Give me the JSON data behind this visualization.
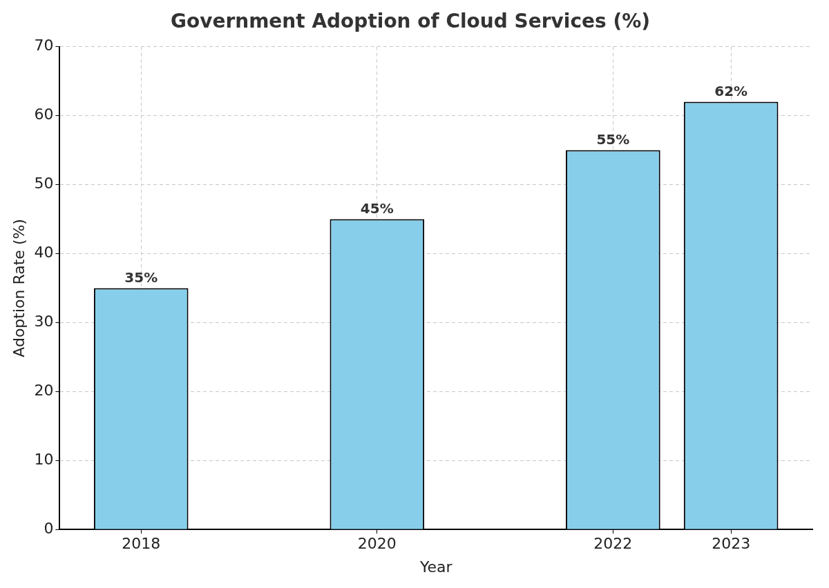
{
  "chart_data": {
    "type": "bar",
    "title": "Government Adoption of Cloud Services (%)",
    "xlabel": "Year",
    "ylabel": "Adoption Rate (%)",
    "x": [
      2018,
      2020,
      2022,
      2023
    ],
    "values": [
      35,
      45,
      55,
      62
    ],
    "value_labels": [
      "35%",
      "45%",
      "55%",
      "62%"
    ],
    "color": "#87ceeb",
    "xlim": [
      2017.31,
      2023.69
    ],
    "xticks": [
      2018,
      2020,
      2022,
      2023
    ],
    "ylim": [
      0,
      70
    ],
    "yticks": [
      0,
      10,
      20,
      30,
      40,
      50,
      60,
      70
    ],
    "grid": true
  }
}
